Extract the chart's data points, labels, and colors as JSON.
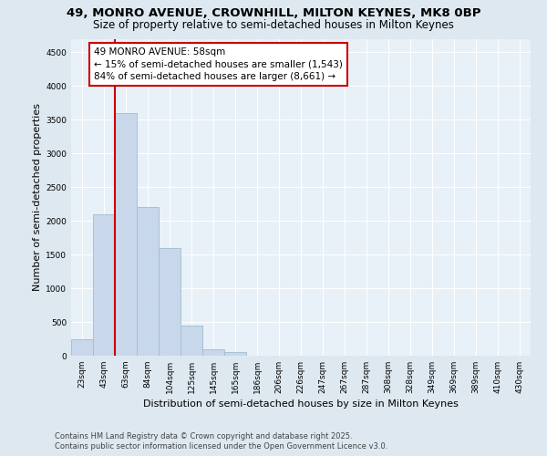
{
  "title": "49, MONRO AVENUE, CROWNHILL, MILTON KEYNES, MK8 0BP",
  "subtitle": "Size of property relative to semi-detached houses in Milton Keynes",
  "xlabel": "Distribution of semi-detached houses by size in Milton Keynes",
  "ylabel": "Number of semi-detached properties",
  "categories": [
    "23sqm",
    "43sqm",
    "63sqm",
    "84sqm",
    "104sqm",
    "125sqm",
    "145sqm",
    "165sqm",
    "186sqm",
    "206sqm",
    "226sqm",
    "247sqm",
    "267sqm",
    "287sqm",
    "308sqm",
    "328sqm",
    "349sqm",
    "369sqm",
    "389sqm",
    "410sqm",
    "430sqm"
  ],
  "values": [
    250,
    2100,
    3600,
    2200,
    1600,
    450,
    100,
    60,
    0,
    0,
    0,
    0,
    0,
    0,
    0,
    0,
    0,
    0,
    0,
    0,
    0
  ],
  "bar_color": "#c8d8ea",
  "bar_edge_color": "#a0bcd0",
  "vline_color": "#cc0000",
  "vline_x_index": 2,
  "annotation_title": "49 MONRO AVENUE: 58sqm",
  "annotation_line1": "← 15% of semi-detached houses are smaller (1,543)",
  "annotation_line2": "84% of semi-detached houses are larger (8,661) →",
  "annotation_box_color": "#cc0000",
  "ylim": [
    0,
    4700
  ],
  "yticks": [
    0,
    500,
    1000,
    1500,
    2000,
    2500,
    3000,
    3500,
    4000,
    4500
  ],
  "footer_line1": "Contains HM Land Registry data © Crown copyright and database right 2025.",
  "footer_line2": "Contains public sector information licensed under the Open Government Licence v3.0.",
  "bg_color": "#dde8f0",
  "plot_bg_color": "#e8f0f8",
  "title_fontsize": 9.5,
  "subtitle_fontsize": 8.5,
  "label_fontsize": 8,
  "tick_fontsize": 6.5,
  "footer_fontsize": 6,
  "annotation_fontsize": 7.5
}
